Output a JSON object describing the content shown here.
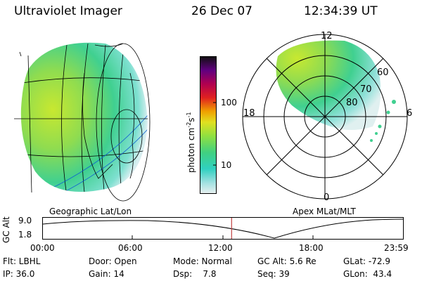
{
  "header": {
    "instrument": "Ultraviolet Imager",
    "date": "26 Dec 07",
    "time": "12:34:39 UT"
  },
  "colorbar": {
    "unit": "photon cm",
    "unit_sup1": "-2",
    "unit_mid": "s",
    "unit_sup2": "-1",
    "tick_100": "100",
    "tick_10": "10"
  },
  "polar_labels": {
    "top": "12",
    "bottom": "0",
    "left": "18",
    "right": "6",
    "lat60": "60",
    "lat70": "70",
    "lat80": "80"
  },
  "panels": {
    "geo_label": "Geographic Lat/Lon",
    "apex_label": "Apex MLat/MLT"
  },
  "altitude_plot": {
    "axis_title": "GC Alt",
    "y_max": "9.0",
    "y_min": "1.8",
    "x_ticks": [
      "00:00",
      "06:00",
      "12:00",
      "18:00",
      "23:59"
    ],
    "current_time_fraction": 0.524
  },
  "info": {
    "flt": "Flt: LBHL",
    "ip": "IP: 36.0",
    "door": "Door: Open",
    "gain": "Gain: 14",
    "mode": "Mode: Normal",
    "dsp": "Dsp:    7.8",
    "gcalt": "GC Alt: 5.6 Re",
    "seq": "Seq: 39",
    "glat": "GLat: -72.9",
    "glon": "GLon:  43.4"
  },
  "colors": {
    "line": "#000000",
    "marker": "#c04040"
  }
}
